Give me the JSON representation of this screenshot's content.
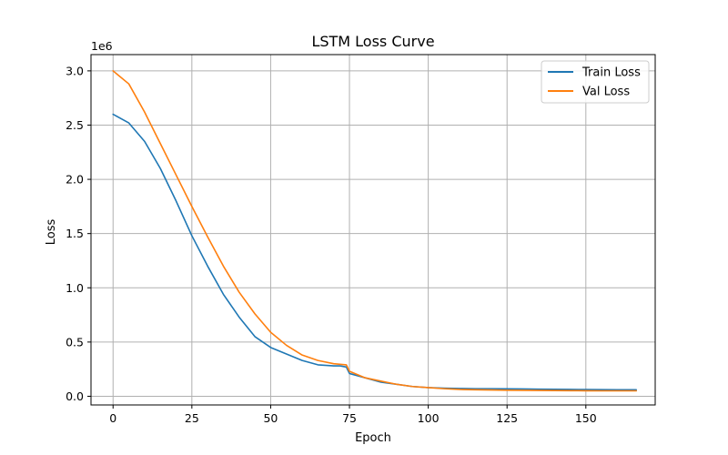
{
  "chart_data": {
    "type": "line",
    "title": "LSTM Loss Curve",
    "xlabel": "Epoch",
    "ylabel": "Loss",
    "y_offset_label": "1e6",
    "xlim": [
      -7,
      172
    ],
    "ylim": [
      -80000,
      3150000
    ],
    "xticks": [
      0,
      25,
      50,
      75,
      100,
      125,
      150
    ],
    "xtick_labels": [
      "0",
      "25",
      "50",
      "75",
      "100",
      "125",
      "150"
    ],
    "yticks": [
      0,
      500000,
      1000000,
      1500000,
      2000000,
      2500000,
      3000000
    ],
    "ytick_labels": [
      "0.0",
      "0.5",
      "1.0",
      "1.5",
      "2.0",
      "2.5",
      "3.0"
    ],
    "grid": true,
    "legend_position": "top-right",
    "series": [
      {
        "name": "Train Loss",
        "color": "#1f77b4",
        "x": [
          0,
          5,
          10,
          15,
          20,
          25,
          30,
          35,
          40,
          45,
          50,
          55,
          60,
          65,
          70,
          72,
          74,
          75,
          80,
          85,
          90,
          95,
          100,
          105,
          110,
          115,
          120,
          125,
          130,
          135,
          140,
          145,
          150,
          155,
          160,
          166
        ],
        "y": [
          2600000,
          2520000,
          2350000,
          2100000,
          1800000,
          1480000,
          1200000,
          940000,
          730000,
          550000,
          450000,
          390000,
          330000,
          290000,
          280000,
          280000,
          270000,
          210000,
          170000,
          130000,
          110000,
          90000,
          80000,
          75000,
          72000,
          70000,
          70000,
          68000,
          67000,
          65000,
          64000,
          63000,
          62000,
          61000,
          60000,
          60000
        ]
      },
      {
        "name": "Val Loss",
        "color": "#ff7f0e",
        "x": [
          0,
          5,
          10,
          15,
          20,
          25,
          30,
          35,
          40,
          45,
          50,
          55,
          60,
          65,
          70,
          72,
          74,
          75,
          80,
          85,
          90,
          95,
          100,
          105,
          110,
          115,
          120,
          125,
          130,
          135,
          140,
          145,
          150,
          155,
          160,
          166
        ],
        "y": [
          3000000,
          2880000,
          2620000,
          2330000,
          2040000,
          1750000,
          1470000,
          1200000,
          960000,
          760000,
          590000,
          470000,
          380000,
          330000,
          300000,
          295000,
          290000,
          230000,
          170000,
          140000,
          110000,
          90000,
          80000,
          70000,
          63000,
          60000,
          58000,
          56000,
          55000,
          54000,
          53000,
          52000,
          51000,
          50000,
          50000,
          50000
        ]
      }
    ]
  }
}
